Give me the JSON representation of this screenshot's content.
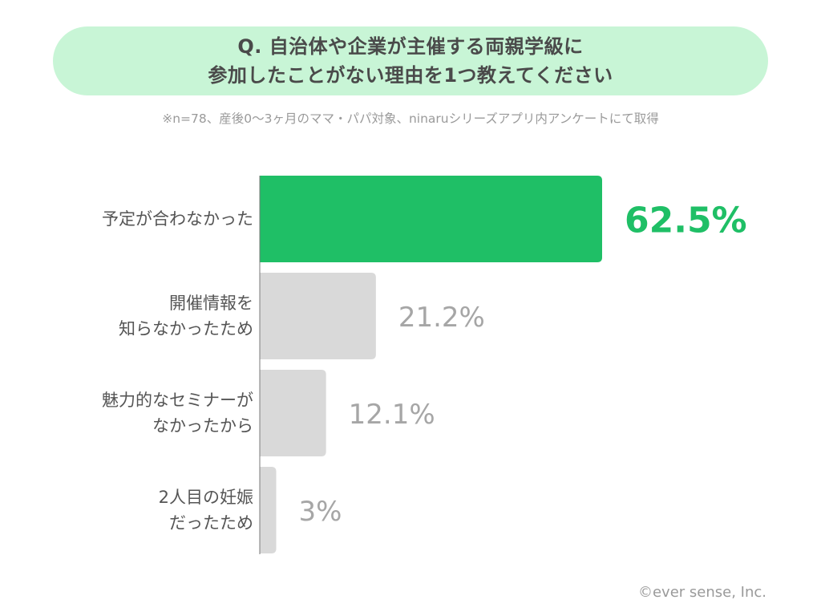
{
  "header": {
    "title_line1": "Q. 自治体や企業が主催する両親学級に",
    "title_line2": "参加したことがない理由を1つ教えてください"
  },
  "note": "※n=78、産後0〜3ヶ月のママ・パパ対象、ninaruシリーズアプリ内アンケートにて取得",
  "footer": {
    "copyright": "©ever sense, Inc."
  },
  "colors": {
    "highlight": "#1fbf66",
    "bar": "#d9d9d9",
    "muted_text": "#a6a6a6",
    "label_text": "#555555",
    "title_bg": "#c8f5d6"
  },
  "chart_data": {
    "type": "bar",
    "orientation": "horizontal",
    "categories": [
      [
        "予定が合わなかった"
      ],
      [
        "開催情報を",
        "知らなかったため"
      ],
      [
        "魅力的なセミナーが",
        "なかったから"
      ],
      [
        "2人目の妊娠",
        "だったため"
      ]
    ],
    "values": [
      62.5,
      21.2,
      12.1,
      3
    ],
    "value_labels": [
      "62.5%",
      "21.2%",
      "12.1%",
      "3%"
    ],
    "highlight_index": 0
  }
}
